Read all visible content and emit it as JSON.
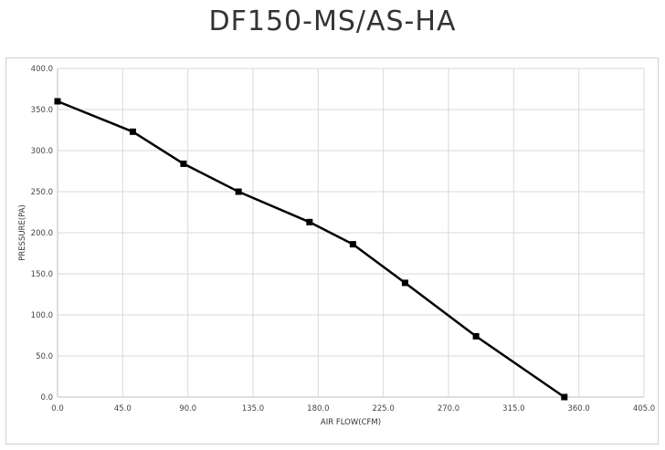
{
  "chart_data": {
    "type": "line",
    "title": "DF150-MS/AS-HA",
    "xlabel": "AIR FLOW(CFM)",
    "ylabel": "PRESSURE(PA)",
    "xlim": [
      0,
      405
    ],
    "ylim": [
      0,
      400
    ],
    "x_ticks": [
      "0.0",
      "45.0",
      "90.0",
      "135.0",
      "180.0",
      "225.0",
      "270.0",
      "315.0",
      "360.0",
      "405.0"
    ],
    "y_ticks": [
      "0.0",
      "50.0",
      "100.0",
      "150.0",
      "200.0",
      "250.0",
      "300.0",
      "350.0",
      "400.0"
    ],
    "grid": true,
    "series": [
      {
        "x": [
          0,
          52,
          87,
          125,
          174,
          204,
          240,
          289,
          350
        ],
        "y": [
          360,
          323,
          284,
          250,
          213,
          186,
          139,
          74,
          0
        ]
      }
    ],
    "colors": {
      "line": "#000000",
      "grid": "#d9d9d9",
      "axis": "#bfbfbf"
    }
  }
}
